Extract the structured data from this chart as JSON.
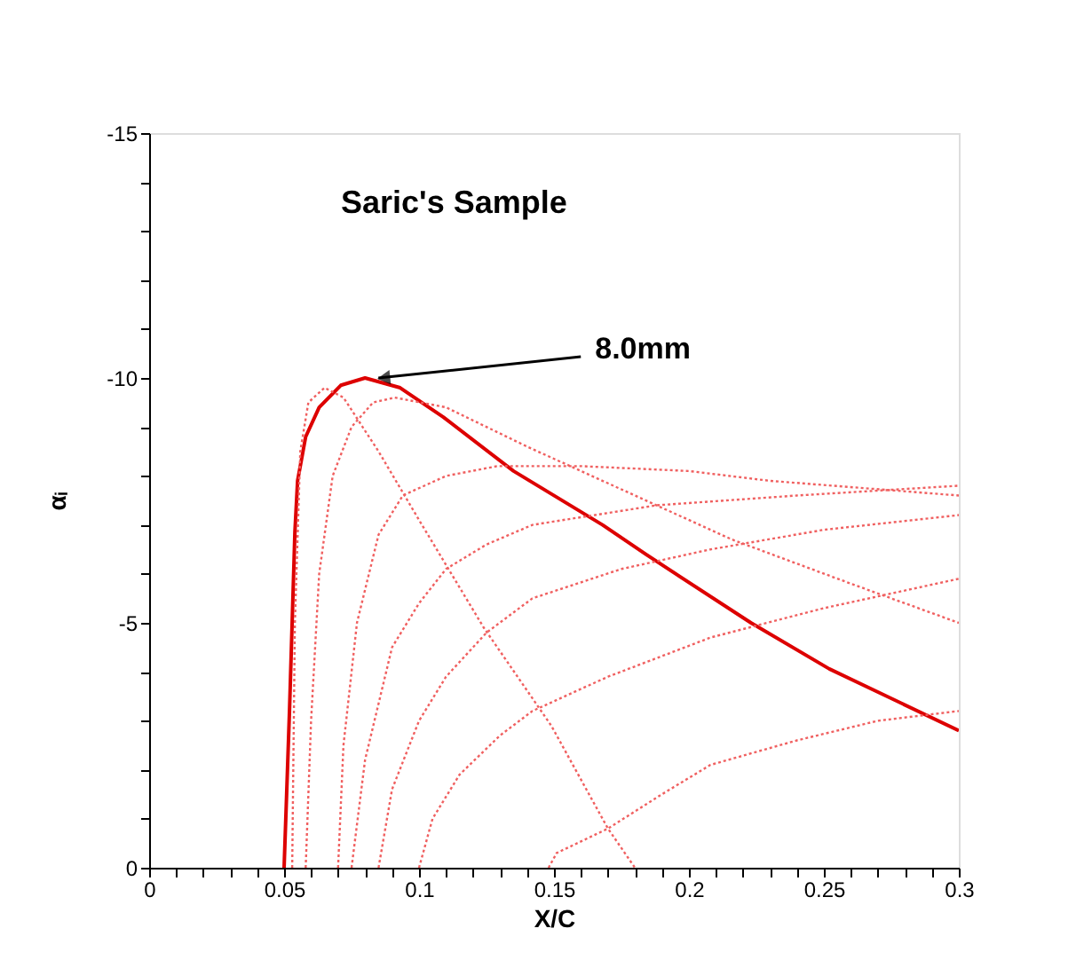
{
  "chart_data": {
    "type": "line",
    "title": "Saric's Sample",
    "xlabel": "X/C",
    "ylabel": "αᵢ",
    "xlim": [
      0,
      0.3
    ],
    "ylim": [
      0,
      -15
    ],
    "xticks": [
      0,
      {
        "value": 0.01,
        "label": null
      },
      {
        "value": 0.02,
        "label": null
      },
      {
        "value": 0.03,
        "label": null
      },
      {
        "value": 0.04,
        "label": null
      },
      0.05,
      {
        "value": 0.06,
        "label": null
      },
      {
        "value": 0.07,
        "label": null
      },
      {
        "value": 0.08,
        "label": null
      },
      {
        "value": 0.09,
        "label": null
      },
      0.1,
      {
        "value": 0.11,
        "label": null
      },
      {
        "value": 0.12,
        "label": null
      },
      {
        "value": 0.13,
        "label": null
      },
      {
        "value": 0.14,
        "label": null
      },
      0.15,
      {
        "value": 0.16,
        "label": null
      },
      {
        "value": 0.17,
        "label": null
      },
      {
        "value": 0.18,
        "label": null
      },
      {
        "value": 0.19,
        "label": null
      },
      0.2,
      {
        "value": 0.21,
        "label": null
      },
      {
        "value": 0.22,
        "label": null
      },
      {
        "value": 0.23,
        "label": null
      },
      {
        "value": 0.24,
        "label": null
      },
      0.25,
      {
        "value": 0.26,
        "label": null
      },
      {
        "value": 0.27,
        "label": null
      },
      {
        "value": 0.28,
        "label": null
      },
      {
        "value": 0.29,
        "label": null
      },
      0.3
    ],
    "yticks": [
      0,
      {
        "value": -1,
        "label": null
      },
      {
        "value": -2,
        "label": null
      },
      {
        "value": -3,
        "label": null
      },
      {
        "value": -4,
        "label": null
      },
      -5,
      {
        "value": -6,
        "label": null
      },
      {
        "value": -7,
        "label": null
      },
      {
        "value": -8,
        "label": null
      },
      {
        "value": -9,
        "label": null
      },
      -10,
      {
        "value": -11,
        "label": null
      },
      {
        "value": -12,
        "label": null
      },
      {
        "value": -13,
        "label": null
      },
      {
        "value": -14,
        "label": null
      },
      -15
    ],
    "grid": false,
    "marker": "none",
    "annotations": [
      {
        "text": "8.0mm",
        "x": 0.081,
        "y": -10
      }
    ],
    "series": [
      {
        "color": "#dd0000",
        "line_style": "solid",
        "x": [
          0.05,
          0.052,
          0.054,
          0.055,
          0.058,
          0.063,
          0.071,
          0.08,
          0.093,
          0.109,
          0.135,
          0.168,
          0.184,
          0.223,
          0.252,
          0.3
        ],
        "values": [
          0,
          -3.2,
          -6.85,
          -7.9,
          -8.8,
          -9.4,
          -9.85,
          -10,
          -9.8,
          -9.2,
          -8.1,
          -7.0,
          -6.4,
          -5.0,
          -4.06,
          -2.8
        ]
      },
      {
        "color": "#f06060",
        "line_style": "dotted",
        "x": [
          0.053,
          0.054,
          0.056,
          0.059,
          0.065,
          0.072,
          0.085,
          0.1,
          0.124,
          0.149,
          0.17,
          0.18
        ],
        "values": [
          0,
          -5,
          -8.5,
          -9.5,
          -9.8,
          -9.6,
          -8.5,
          -7.1,
          -4.9,
          -2.9,
          -0.8,
          0
        ]
      },
      {
        "color": "#f06060",
        "line_style": "dotted",
        "x": [
          0.058,
          0.06,
          0.063,
          0.068,
          0.075,
          0.083,
          0.091,
          0.11,
          0.14,
          0.18,
          0.216,
          0.26,
          0.3
        ],
        "values": [
          0,
          -3,
          -6,
          -8,
          -9,
          -9.5,
          -9.6,
          -9.4,
          -8.6,
          -7.6,
          -6.7,
          -5.8,
          -5.0
        ]
      },
      {
        "color": "#f06060",
        "line_style": "dotted",
        "x": [
          0.07,
          0.072,
          0.077,
          0.085,
          0.094,
          0.11,
          0.129,
          0.16,
          0.2,
          0.23,
          0.3
        ],
        "values": [
          0,
          -2.5,
          -5,
          -6.8,
          -7.6,
          -8.0,
          -8.2,
          -8.2,
          -8.1,
          -7.9,
          -7.6
        ]
      },
      {
        "color": "#f06060",
        "line_style": "dotted",
        "x": [
          0.075,
          0.08,
          0.09,
          0.1,
          0.11,
          0.125,
          0.142,
          0.188,
          0.24,
          0.3
        ],
        "values": [
          0,
          -2.2,
          -4.5,
          -5.4,
          -6.1,
          -6.6,
          -7.0,
          -7.4,
          -7.6,
          -7.8
        ]
      },
      {
        "color": "#f06060",
        "line_style": "dotted",
        "x": [
          0.085,
          0.09,
          0.1,
          0.11,
          0.125,
          0.142,
          0.175,
          0.208,
          0.25,
          0.3
        ],
        "values": [
          0,
          -1.6,
          -3.0,
          -3.9,
          -4.8,
          -5.5,
          -6.1,
          -6.5,
          -6.9,
          -7.2
        ]
      },
      {
        "color": "#f06060",
        "line_style": "dotted",
        "x": [
          0.1,
          0.105,
          0.115,
          0.13,
          0.142,
          0.17,
          0.208,
          0.25,
          0.3
        ],
        "values": [
          0,
          -1.0,
          -1.9,
          -2.7,
          -3.2,
          -3.9,
          -4.7,
          -5.3,
          -5.9
        ]
      },
      {
        "color": "#f06060",
        "line_style": "dotted",
        "x": [
          0.148,
          0.151,
          0.17,
          0.19,
          0.208,
          0.24,
          0.27,
          0.3
        ],
        "values": [
          0,
          -0.3,
          -0.8,
          -1.5,
          -2.1,
          -2.6,
          -3.0,
          -3.2
        ]
      }
    ]
  }
}
